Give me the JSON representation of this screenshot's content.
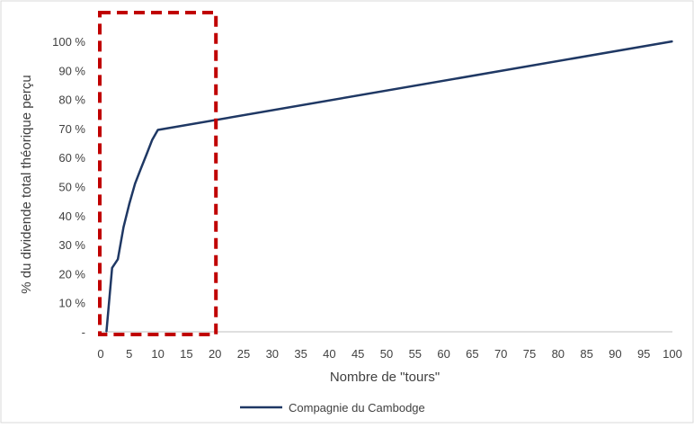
{
  "chart_data": {
    "type": "line",
    "title": "",
    "xlabel": "Nombre de \"tours\"",
    "ylabel": "% du dividende total théorique perçu",
    "xlim": [
      0,
      100
    ],
    "ylim": [
      0,
      100
    ],
    "x_ticks": [
      "0",
      "5",
      "10",
      "15",
      "20",
      "25",
      "30",
      "35",
      "40",
      "45",
      "50",
      "55",
      "60",
      "65",
      "70",
      "75",
      "80",
      "85",
      "90",
      "95",
      "100"
    ],
    "y_ticks": [
      "-",
      "10 %",
      "20 %",
      "30 %",
      "40 %",
      "50 %",
      "60 %",
      "70 %",
      "80 %",
      "90 %",
      "100 %"
    ],
    "grid": false,
    "legend_position": "bottom",
    "series": [
      {
        "name": "Compagnie du Cambodge",
        "color": "#1f3864",
        "x": [
          1,
          2,
          3,
          4,
          5,
          6,
          7,
          8,
          9,
          10,
          100
        ],
        "y": [
          0,
          22,
          25,
          36,
          44,
          51,
          56,
          61,
          66,
          69.5,
          100
        ]
      }
    ],
    "annotation": {
      "type": "dashed-rectangle",
      "color": "#c00000",
      "x_range": [
        0,
        20
      ]
    }
  }
}
